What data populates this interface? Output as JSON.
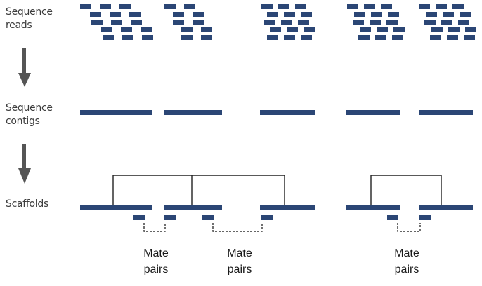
{
  "stages": {
    "reads": "Sequence\nreads",
    "contigs": "Sequence\ncontigs",
    "scaffolds": "Scaffolds"
  },
  "mate_pairs_labels": [
    "Mate\npairs",
    "Mate\npairs",
    "Mate\npairs"
  ],
  "colors": {
    "contig": "#2b4675",
    "arrow": "#555555",
    "link": "#222222",
    "mate_dash": "#333333"
  },
  "icons": [
    "down-arrow-icon"
  ]
}
